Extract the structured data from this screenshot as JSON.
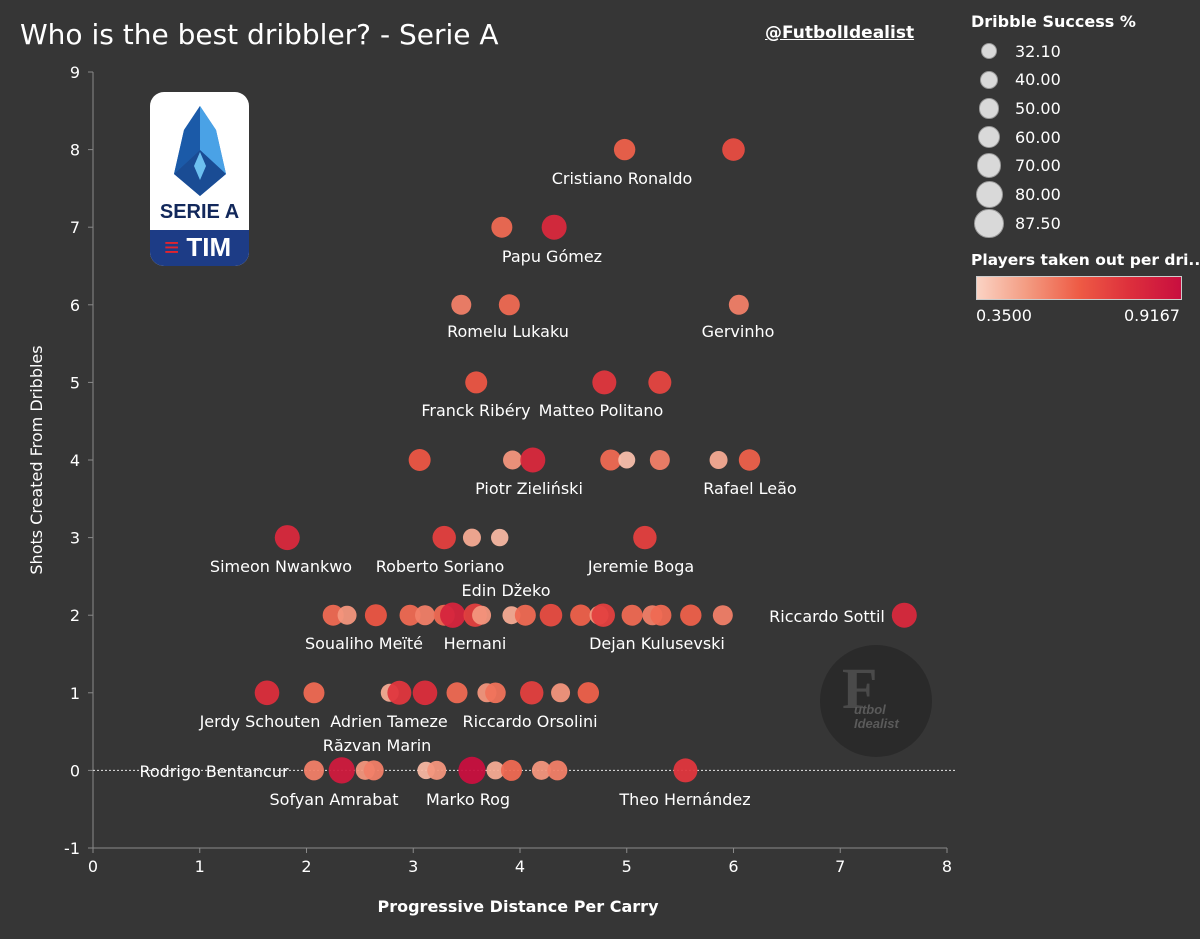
{
  "title": "Who is the best dribbler? - Serie A",
  "handle": "@FutbolIdealist",
  "logo": {
    "text": "SERIE A",
    "tim": "TIM",
    "icon": "serie-a-logo"
  },
  "watermark": {
    "big": "F",
    "small1": "utbol",
    "small2": "Idealist"
  },
  "size_legend": {
    "title": "Dribble Success %",
    "values": [
      "32.10",
      "40.00",
      "50.00",
      "60.00",
      "70.00",
      "80.00",
      "87.50"
    ]
  },
  "color_legend": {
    "title": "Players taken out per dri..",
    "min": "0.3500",
    "max": "0.9167",
    "colors": [
      "#fbd3c4",
      "#f39a80",
      "#ee5b45",
      "#dd2f3c",
      "#c80e3f"
    ]
  },
  "chart_data": {
    "type": "scatter",
    "xlabel": "Progressive Distance Per Carry",
    "ylabel": "Shots Created From Dribbles",
    "xlim": [
      0,
      8
    ],
    "ylim": [
      -1,
      9
    ],
    "xticks": [
      "0",
      "1",
      "2",
      "3",
      "4",
      "5",
      "6",
      "7",
      "8"
    ],
    "yticks": [
      "-1",
      "0",
      "1",
      "2",
      "3",
      "4",
      "5",
      "6",
      "7",
      "8",
      "9"
    ],
    "reference_line_y": 0,
    "points": [
      {
        "x": 4.98,
        "y": 8,
        "v": 0.62,
        "label": "Cristiano Ronaldo"
      },
      {
        "x": 6.0,
        "y": 8,
        "v": 0.68,
        "label": ""
      },
      {
        "x": 3.83,
        "y": 7,
        "v": 0.6,
        "label": ""
      },
      {
        "x": 4.32,
        "y": 7,
        "v": 0.8,
        "label": "Papu Gómez"
      },
      {
        "x": 3.45,
        "y": 6,
        "v": 0.55,
        "label": "Romelu Lukaku"
      },
      {
        "x": 3.9,
        "y": 6,
        "v": 0.6,
        "label": ""
      },
      {
        "x": 6.05,
        "y": 6,
        "v": 0.55,
        "label": "Gervinho"
      },
      {
        "x": 3.59,
        "y": 5,
        "v": 0.65,
        "label": "Franck Ribéry"
      },
      {
        "x": 4.79,
        "y": 5,
        "v": 0.75,
        "label": "Matteo Politano"
      },
      {
        "x": 5.31,
        "y": 5,
        "v": 0.7,
        "label": ""
      },
      {
        "x": 3.06,
        "y": 4,
        "v": 0.65,
        "label": ""
      },
      {
        "x": 3.93,
        "y": 4,
        "v": 0.5,
        "label": ""
      },
      {
        "x": 4.12,
        "y": 4,
        "v": 0.8,
        "label": "Piotr Zieliński"
      },
      {
        "x": 4.85,
        "y": 4,
        "v": 0.6,
        "label": ""
      },
      {
        "x": 5.0,
        "y": 4,
        "v": 0.4,
        "label": ""
      },
      {
        "x": 5.31,
        "y": 4,
        "v": 0.55,
        "label": ""
      },
      {
        "x": 5.86,
        "y": 4,
        "v": 0.45,
        "label": ""
      },
      {
        "x": 6.15,
        "y": 4,
        "v": 0.62,
        "label": "Rafael Leão"
      },
      {
        "x": 1.82,
        "y": 3,
        "v": 0.8,
        "label": "Simeon Nwankwo"
      },
      {
        "x": 3.29,
        "y": 3,
        "v": 0.72,
        "label": "Roberto Soriano"
      },
      {
        "x": 3.55,
        "y": 3,
        "v": 0.45,
        "label": ""
      },
      {
        "x": 3.81,
        "y": 3,
        "v": 0.42,
        "label": ""
      },
      {
        "x": 5.17,
        "y": 3,
        "v": 0.72,
        "label": "Jeremie Boga"
      },
      {
        "x": 2.25,
        "y": 2,
        "v": 0.6,
        "label": ""
      },
      {
        "x": 2.38,
        "y": 2,
        "v": 0.5,
        "label": ""
      },
      {
        "x": 2.65,
        "y": 2,
        "v": 0.65,
        "label": "Soualiho Meïté"
      },
      {
        "x": 2.97,
        "y": 2,
        "v": 0.6,
        "label": ""
      },
      {
        "x": 3.11,
        "y": 2,
        "v": 0.55,
        "label": ""
      },
      {
        "x": 3.29,
        "y": 2,
        "v": 0.6,
        "label": ""
      },
      {
        "x": 3.37,
        "y": 2,
        "v": 0.82,
        "label": ""
      },
      {
        "x": 3.58,
        "y": 2,
        "v": 0.72,
        "label": "Hernani"
      },
      {
        "x": 3.64,
        "y": 2,
        "v": 0.5,
        "label": ""
      },
      {
        "x": 3.92,
        "y": 2,
        "v": 0.45,
        "label": ""
      },
      {
        "x": 4.05,
        "y": 2,
        "v": 0.6,
        "label": "Edin Džeko"
      },
      {
        "x": 4.29,
        "y": 2,
        "v": 0.68,
        "label": ""
      },
      {
        "x": 4.57,
        "y": 2,
        "v": 0.62,
        "label": ""
      },
      {
        "x": 4.74,
        "y": 2,
        "v": 0.5,
        "label": ""
      },
      {
        "x": 4.78,
        "y": 2,
        "v": 0.72,
        "label": "Dejan Kulusevski"
      },
      {
        "x": 5.05,
        "y": 2,
        "v": 0.6,
        "label": ""
      },
      {
        "x": 5.24,
        "y": 2,
        "v": 0.55,
        "label": ""
      },
      {
        "x": 5.32,
        "y": 2,
        "v": 0.6,
        "label": ""
      },
      {
        "x": 5.6,
        "y": 2,
        "v": 0.62,
        "label": ""
      },
      {
        "x": 5.9,
        "y": 2,
        "v": 0.55,
        "label": ""
      },
      {
        "x": 7.6,
        "y": 2,
        "v": 0.8,
        "label": "Riccardo Sottil"
      },
      {
        "x": 1.63,
        "y": 1,
        "v": 0.78,
        "label": "Jerdy Schouten"
      },
      {
        "x": 2.07,
        "y": 1,
        "v": 0.6,
        "label": ""
      },
      {
        "x": 2.78,
        "y": 1,
        "v": 0.45,
        "label": ""
      },
      {
        "x": 2.87,
        "y": 1,
        "v": 0.75,
        "label": "Adrien Tameze"
      },
      {
        "x": 3.11,
        "y": 1,
        "v": 0.78,
        "label": ""
      },
      {
        "x": 3.41,
        "y": 1,
        "v": 0.6,
        "label": ""
      },
      {
        "x": 3.69,
        "y": 1,
        "v": 0.5,
        "label": ""
      },
      {
        "x": 3.77,
        "y": 1,
        "v": 0.58,
        "label": "Riccardo Orsolini"
      },
      {
        "x": 4.11,
        "y": 1,
        "v": 0.72,
        "label": ""
      },
      {
        "x": 4.38,
        "y": 1,
        "v": 0.5,
        "label": ""
      },
      {
        "x": 4.64,
        "y": 1,
        "v": 0.62,
        "label": ""
      },
      {
        "x": 2.07,
        "y": 0,
        "v": 0.55,
        "label": "Rodrigo Bentancur"
      },
      {
        "x": 2.33,
        "y": 0,
        "v": 0.86,
        "label": "Sofyan Amrabat"
      },
      {
        "x": 2.55,
        "y": 0,
        "v": 0.5,
        "label": "Răzvan Marin"
      },
      {
        "x": 2.63,
        "y": 0,
        "v": 0.55,
        "label": ""
      },
      {
        "x": 3.12,
        "y": 0,
        "v": 0.42,
        "label": ""
      },
      {
        "x": 3.22,
        "y": 0,
        "v": 0.5,
        "label": ""
      },
      {
        "x": 3.55,
        "y": 0,
        "v": 0.91,
        "label": "Marko Rog"
      },
      {
        "x": 3.77,
        "y": 0,
        "v": 0.45,
        "label": ""
      },
      {
        "x": 3.92,
        "y": 0,
        "v": 0.6,
        "label": ""
      },
      {
        "x": 4.2,
        "y": 0,
        "v": 0.5,
        "label": ""
      },
      {
        "x": 4.35,
        "y": 0,
        "v": 0.55,
        "label": ""
      },
      {
        "x": 5.55,
        "y": 0,
        "v": 0.75,
        "label": "Theo Hernández"
      }
    ]
  }
}
